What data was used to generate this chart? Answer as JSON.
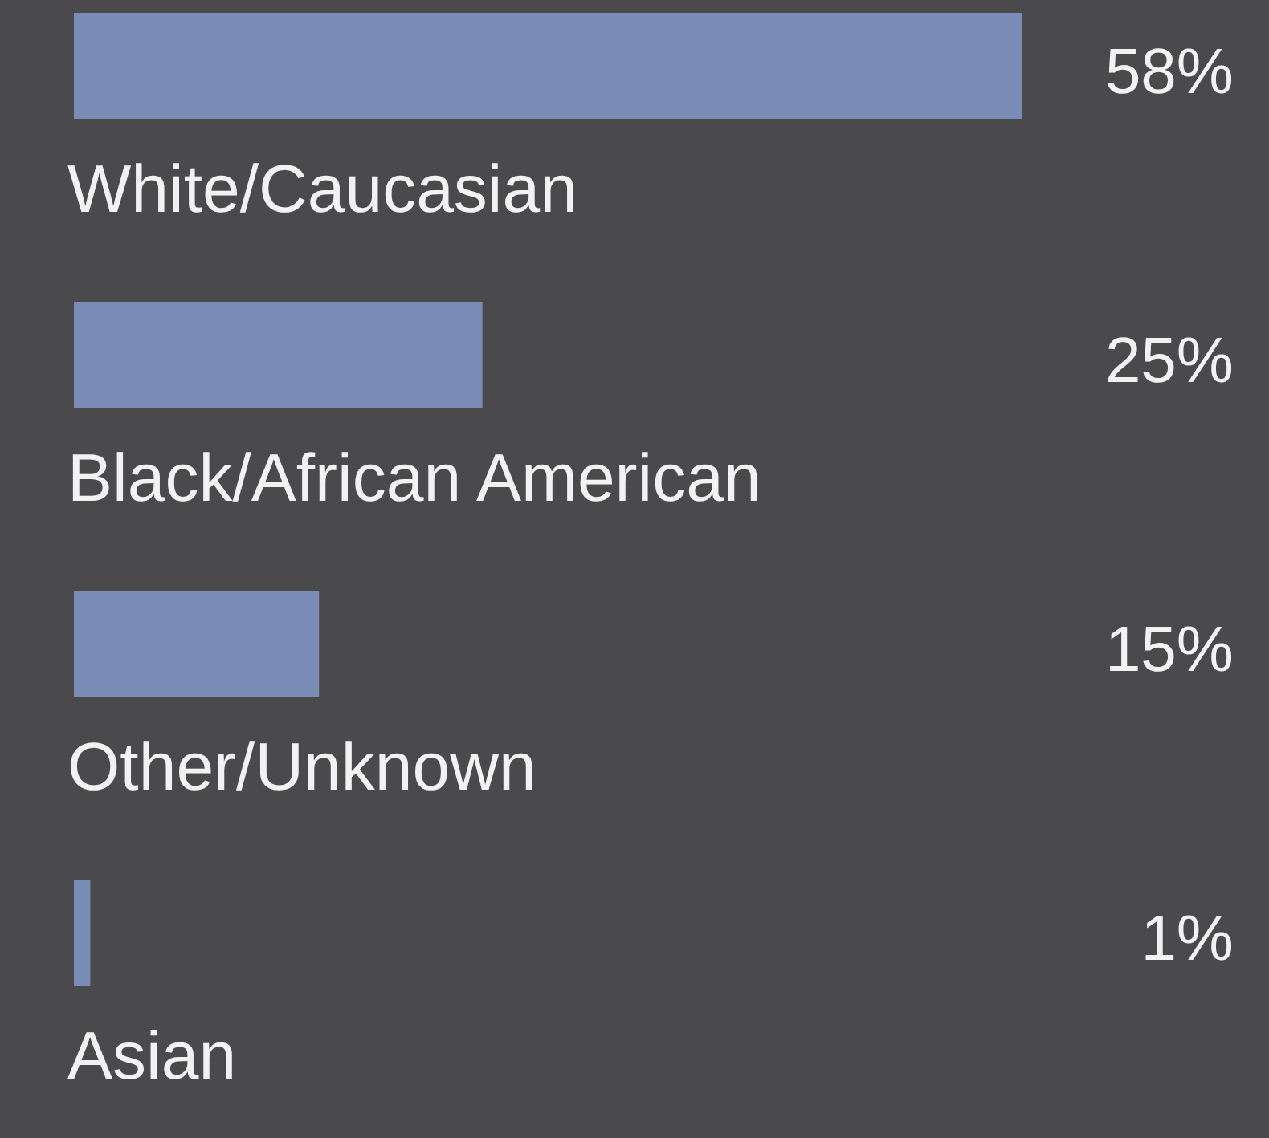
{
  "chart_data": {
    "type": "bar",
    "orientation": "horizontal",
    "categories": [
      "White/Caucasian",
      "Black/African American",
      "Other/Unknown",
      "Asian"
    ],
    "values": [
      58,
      25,
      15,
      1
    ],
    "value_labels": [
      "58%",
      "25%",
      "15%",
      "1%"
    ],
    "color": "#7a8cb6"
  }
}
